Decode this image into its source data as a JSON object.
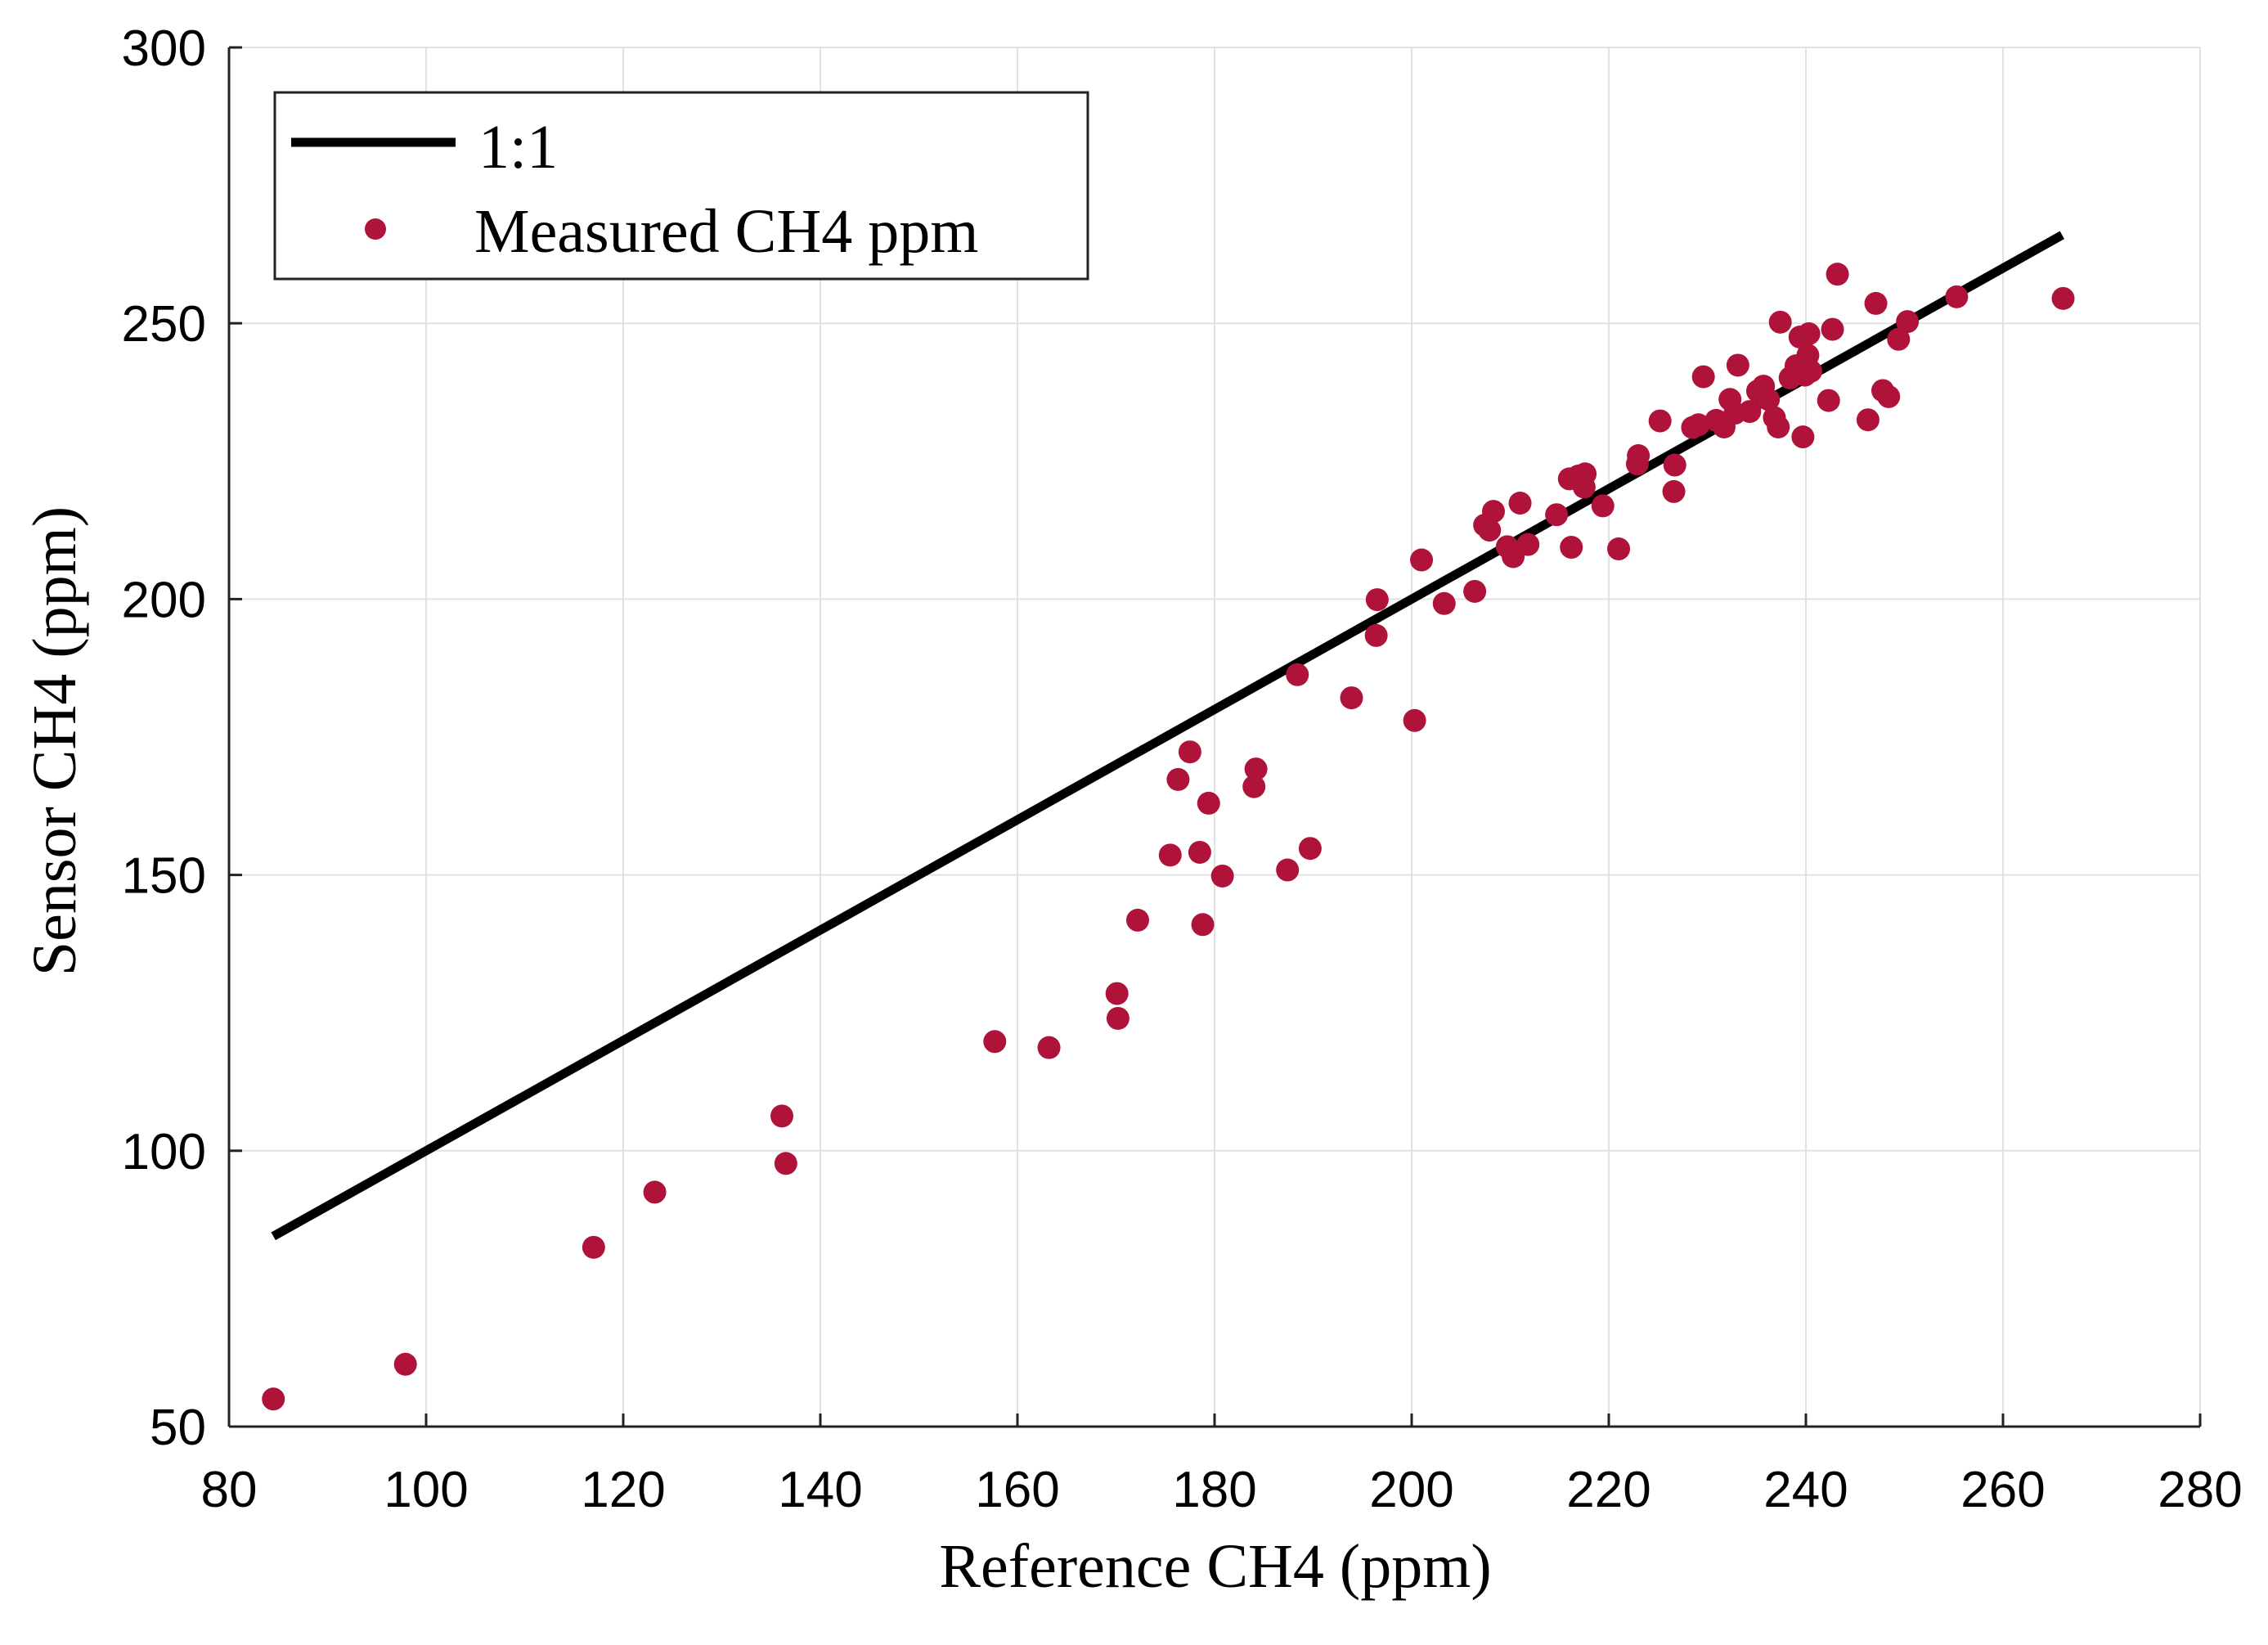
{
  "chart_data": {
    "type": "scatter",
    "title": "",
    "xlabel": "Reference CH4 (ppm)",
    "ylabel": "Sensor CH4 (ppm)",
    "xlim": [
      80,
      280
    ],
    "ylim": [
      50,
      300
    ],
    "xticks": [
      80,
      100,
      120,
      140,
      160,
      180,
      200,
      220,
      240,
      260,
      280
    ],
    "yticks": [
      50,
      100,
      150,
      200,
      250,
      300
    ],
    "xtick_labels": [
      "80",
      "100",
      "120",
      "140",
      "160",
      "180",
      "200",
      "220",
      "240",
      "260",
      "280"
    ],
    "ytick_labels": [
      "50",
      "100",
      "150",
      "200",
      "250",
      "300"
    ],
    "grid": true,
    "legend": {
      "placement": "top-left",
      "entries": [
        {
          "label": "1:1",
          "marker": "line",
          "color": "#000000"
        },
        {
          "label": "Measured CH4 ppm",
          "marker": "circle",
          "color": "#B0133A"
        }
      ]
    },
    "series": [
      {
        "name": "1:1",
        "type": "line",
        "color": "#000000",
        "x": [
          84.5,
          266.0
        ],
        "y": [
          84.5,
          266.0
        ]
      },
      {
        "name": "Measured CH4 ppm",
        "type": "scatter",
        "color": "#B0133A",
        "points": [
          [
            84.5,
            55
          ],
          [
            97.9,
            61.3
          ],
          [
            117,
            82.5
          ],
          [
            123.2,
            92.5
          ],
          [
            136.1,
            106.3
          ],
          [
            136.5,
            97.7
          ],
          [
            157.7,
            119.8
          ],
          [
            163.2,
            118.7
          ],
          [
            170.1,
            128.5
          ],
          [
            170.2,
            124
          ],
          [
            172.2,
            141.8
          ],
          [
            175.5,
            153.6
          ],
          [
            176.3,
            167.3
          ],
          [
            177.5,
            172.3
          ],
          [
            178.5,
            154.1
          ],
          [
            178.8,
            141
          ],
          [
            179.4,
            163
          ],
          [
            180.8,
            149.8
          ],
          [
            184,
            166
          ],
          [
            184.2,
            169.2
          ],
          [
            187.4,
            150.9
          ],
          [
            188.4,
            186.3
          ],
          [
            189.7,
            154.8
          ],
          [
            193.9,
            182.1
          ],
          [
            196.4,
            193.4
          ],
          [
            196.5,
            199.9
          ],
          [
            200.3,
            178
          ],
          [
            201,
            207.1
          ],
          [
            203.3,
            199.2
          ],
          [
            206.4,
            201.4
          ],
          [
            207.4,
            213.4
          ],
          [
            207.9,
            212.5
          ],
          [
            208.3,
            215.9
          ],
          [
            209.7,
            209.5
          ],
          [
            210.3,
            207.7
          ],
          [
            211,
            217.4
          ],
          [
            211.8,
            209.9
          ],
          [
            214.7,
            215.3
          ],
          [
            216,
            221.8
          ],
          [
            216.2,
            209.4
          ],
          [
            216.9,
            222.3
          ],
          [
            217.5,
            220.3
          ],
          [
            217.6,
            222.7
          ],
          [
            219.4,
            216.9
          ],
          [
            221,
            209.1
          ],
          [
            222.9,
            224.5
          ],
          [
            223,
            226
          ],
          [
            225.2,
            232.3
          ],
          [
            226.6,
            219.5
          ],
          [
            226.7,
            224.3
          ],
          [
            228.5,
            231.1
          ],
          [
            229.1,
            231.6
          ],
          [
            229.6,
            240.3
          ],
          [
            230.9,
            232.4
          ],
          [
            231.7,
            231.2
          ],
          [
            232.3,
            236.2
          ],
          [
            232.8,
            233.7
          ],
          [
            233.1,
            242.4
          ],
          [
            234.3,
            234
          ],
          [
            235.1,
            237.7
          ],
          [
            235.7,
            238.6
          ],
          [
            236.2,
            236.2
          ],
          [
            236.8,
            232.9
          ],
          [
            237.2,
            231.2
          ],
          [
            237.4,
            250.2
          ],
          [
            238.4,
            240.1
          ],
          [
            239,
            242.3
          ],
          [
            239.4,
            247.5
          ],
          [
            239.7,
            229.4
          ],
          [
            239.9,
            240.6
          ],
          [
            240.2,
            244.2
          ],
          [
            240.5,
            241.3
          ],
          [
            240.3,
            248.1
          ],
          [
            242.3,
            236
          ],
          [
            242.7,
            248.9
          ],
          [
            243.2,
            258.9
          ],
          [
            246.3,
            232.5
          ],
          [
            247.1,
            253.6
          ],
          [
            247.8,
            237.8
          ],
          [
            248.4,
            236.7
          ],
          [
            249.4,
            247.1
          ],
          [
            250.3,
            250.3
          ],
          [
            255.3,
            254.8
          ],
          [
            266.1,
            254.5
          ]
        ]
      }
    ]
  }
}
